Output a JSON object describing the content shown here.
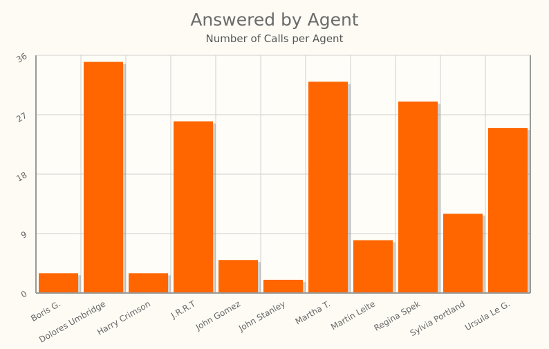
{
  "chart_data": {
    "type": "bar",
    "title": "Answered by Agent",
    "subtitle": "Number of Calls per Agent",
    "xlabel": "",
    "ylabel": "",
    "categories": [
      "Boris G.",
      "Dolores Umbridge",
      "Harry Crimson",
      "J.R.R.T",
      "John Gomez",
      "John Stanley",
      "Martha T.",
      "Martin Leite",
      "Regina Spek",
      "Sylvia Portland",
      "Ursula Le G."
    ],
    "values": [
      3,
      35,
      3,
      26,
      5,
      2,
      32,
      8,
      29,
      12,
      25
    ],
    "ylim": [
      0,
      36
    ],
    "yticks": [
      "0",
      "9",
      "18",
      "27",
      "36"
    ],
    "grid": true,
    "legend": "none",
    "colors": {
      "bar": "#ff6600",
      "grid": "#d0d0d0",
      "axis": "#999999",
      "background": "#fdfbf4"
    }
  }
}
